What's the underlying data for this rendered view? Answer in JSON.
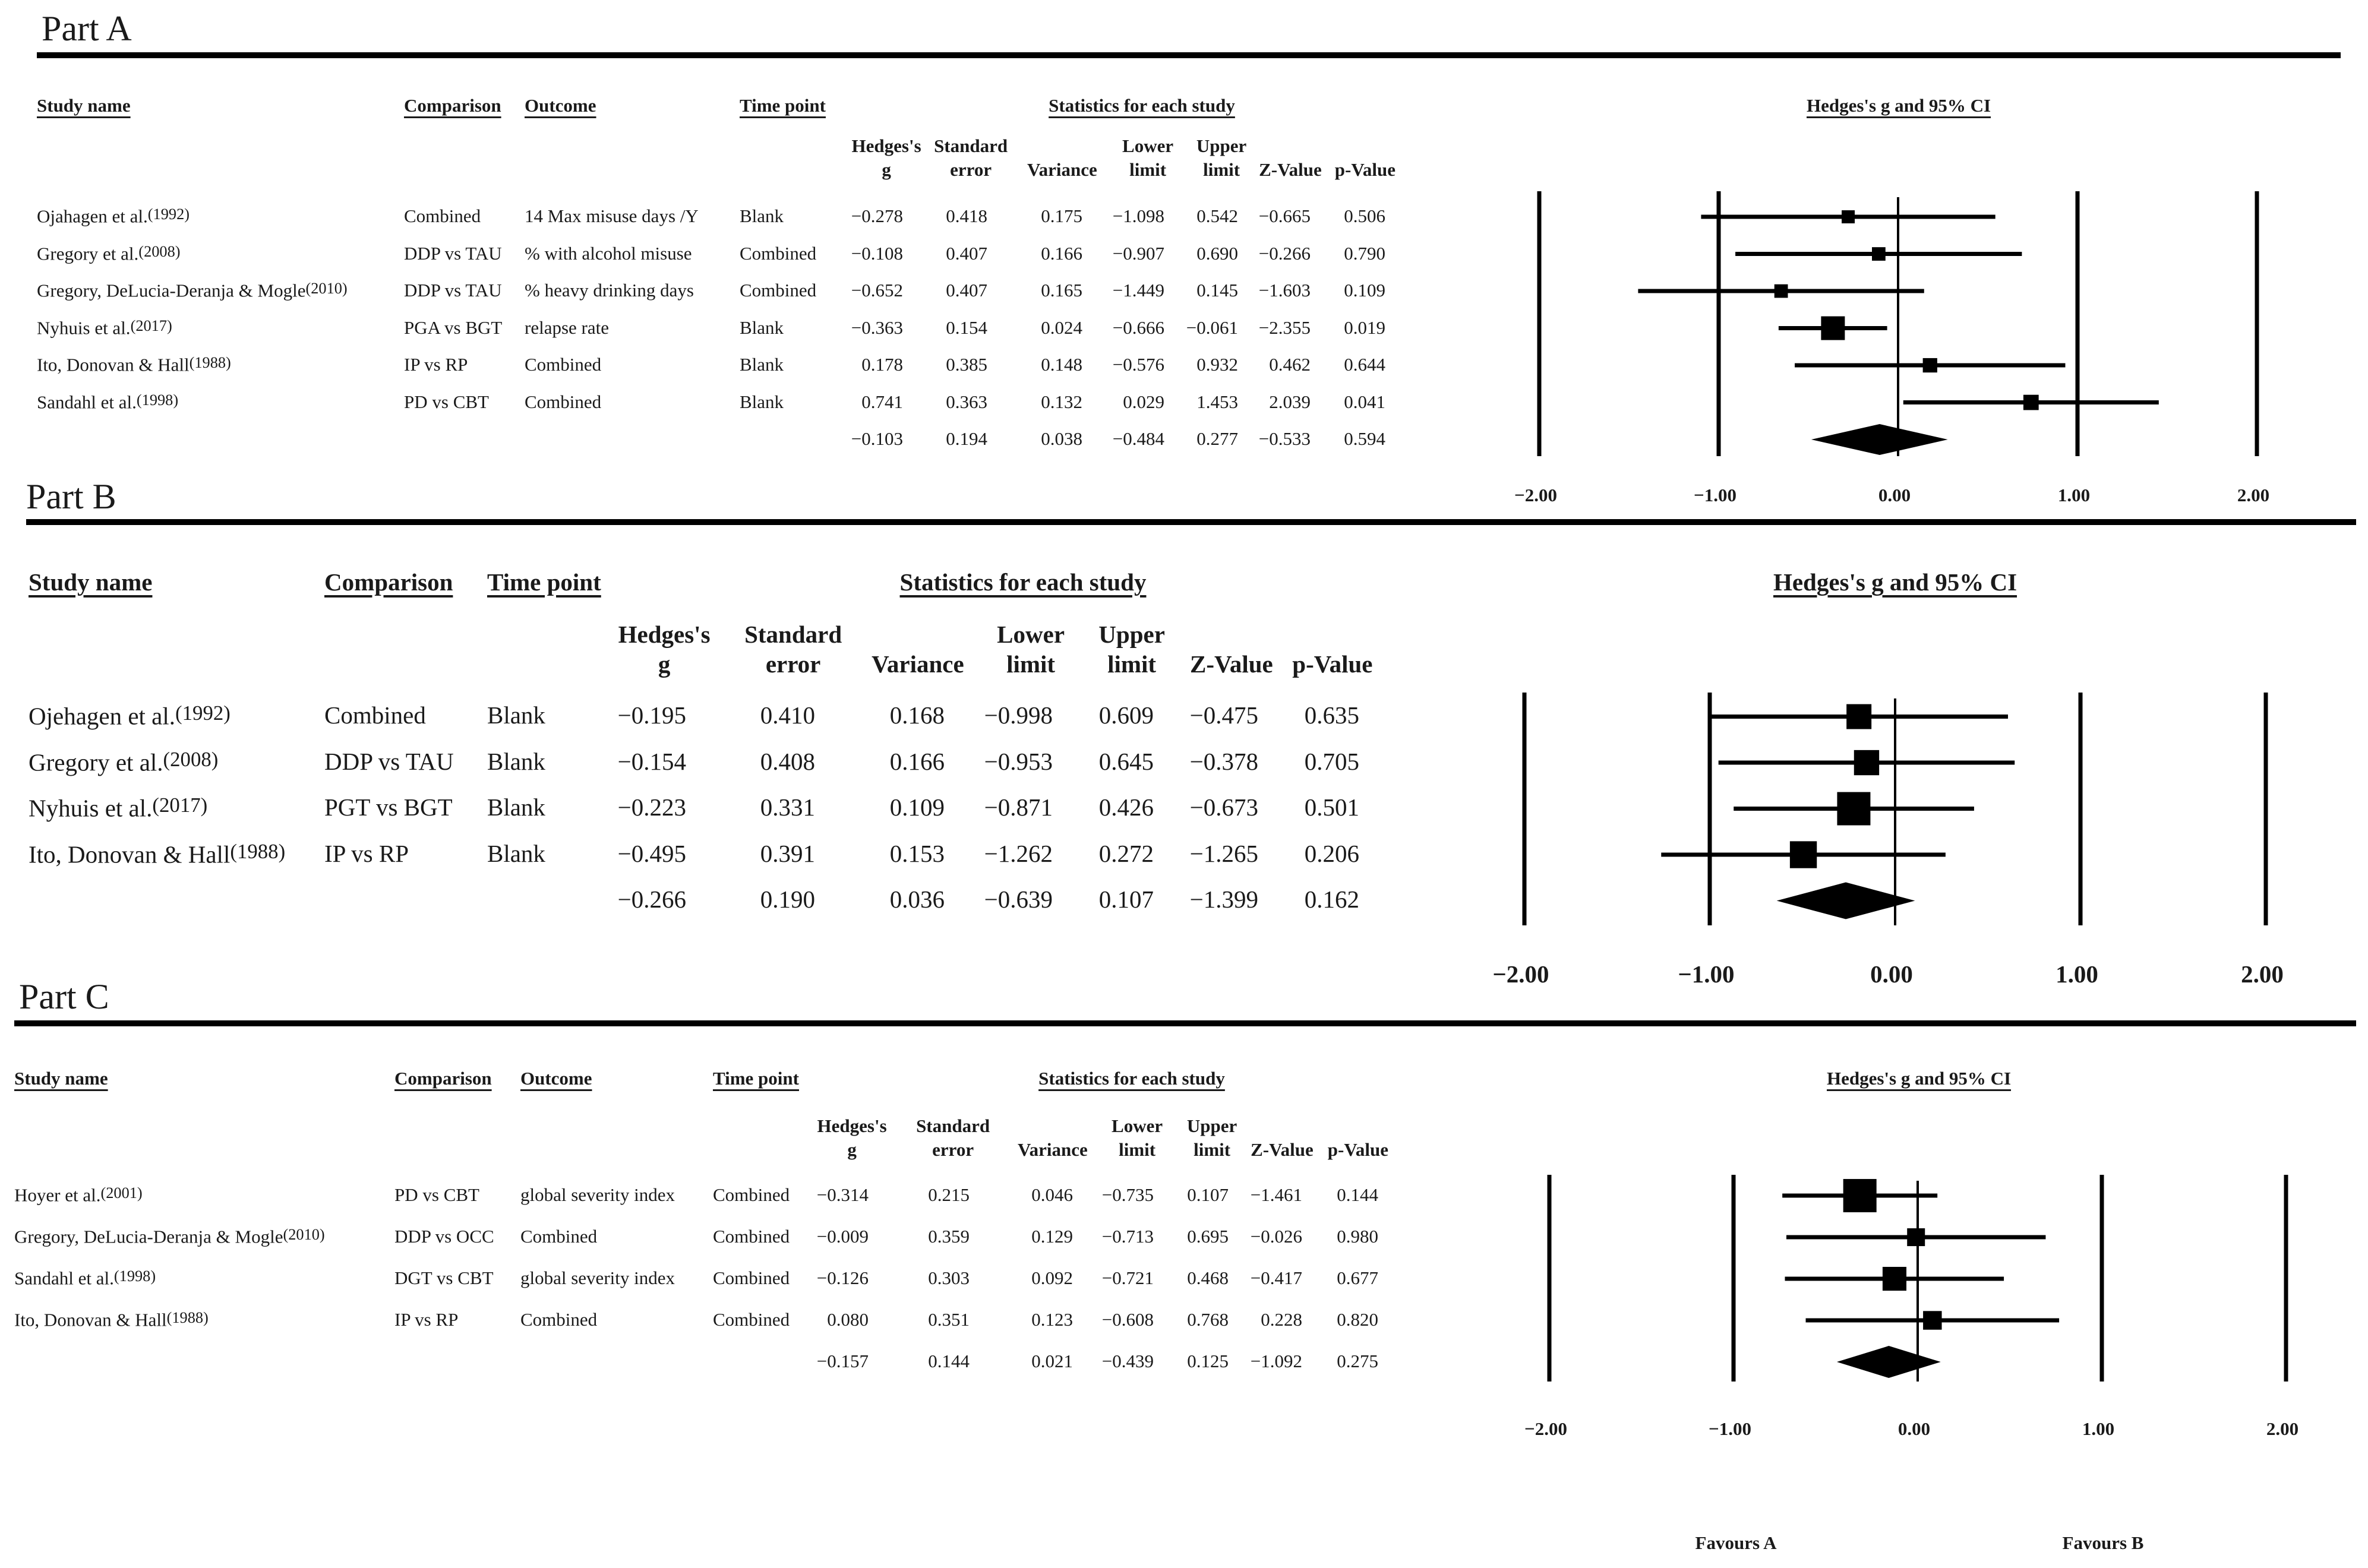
{
  "parts": [
    {
      "title": "Part A",
      "has_outcome": true,
      "columns": {
        "study": "Study name",
        "comparison": "Comparison",
        "outcome": "Outcome",
        "timepoint": "Time point",
        "stats_group": "Statistics for each study",
        "ci_group": "Hedges's g and 95% CI",
        "g": [
          "Hedges's",
          "g"
        ],
        "se": [
          "Standard",
          "error"
        ],
        "var": "Variance",
        "lower": [
          "Lower",
          "limit"
        ],
        "upper": [
          "Upper",
          "limit"
        ],
        "z": "Z-Value",
        "p": "p-Value"
      },
      "rows": [
        {
          "study": "Ojahagen et al.",
          "year": "(1992)",
          "comparison": "Combined",
          "outcome": "14 Max misuse days /Y",
          "timepoint": "Blank",
          "g": "−0.278",
          "se": "0.418",
          "var": "0.175",
          "lower": "−1.098",
          "upper": "0.542",
          "z": "−0.665",
          "p": "0.506"
        },
        {
          "study": "Gregory et al.",
          "year": "(2008)",
          "comparison": "DDP vs TAU",
          "outcome": "% with alcohol misuse",
          "timepoint": "Combined",
          "g": "−0.108",
          "se": "0.407",
          "var": "0.166",
          "lower": "−0.907",
          "upper": "0.690",
          "z": "−0.266",
          "p": "0.790"
        },
        {
          "study": "Gregory, DeLucia-Deranja & Mogle",
          "year": "(2010)",
          "comparison": "DDP vs TAU",
          "outcome": "% heavy drinking days",
          "timepoint": "Combined",
          "g": "−0.652",
          "se": "0.407",
          "var": "0.165",
          "lower": "−1.449",
          "upper": "0.145",
          "z": "−1.603",
          "p": "0.109"
        },
        {
          "study": "Nyhuis et al.",
          "year": "(2017)",
          "comparison": "PGA vs BGT",
          "outcome": "relapse rate",
          "timepoint": "Blank",
          "g": "−0.363",
          "se": "0.154",
          "var": "0.024",
          "lower": "−0.666",
          "upper": "−0.061",
          "z": "−2.355",
          "p": "0.019"
        },
        {
          "study": "Ito, Donovan & Hall",
          "year": "(1988)",
          "comparison": "IP vs RP",
          "outcome": "Combined",
          "timepoint": "Blank",
          "g": "0.178",
          "se": "0.385",
          "var": "0.148",
          "lower": "−0.576",
          "upper": "0.932",
          "z": "0.462",
          "p": "0.644"
        },
        {
          "study": "Sandahl et al.",
          "year": "(1998)",
          "comparison": "PD vs CBT",
          "outcome": "Combined",
          "timepoint": "Blank",
          "g": "0.741",
          "se": "0.363",
          "var": "0.132",
          "lower": "0.029",
          "upper": "1.453",
          "z": "2.039",
          "p": "0.041"
        }
      ],
      "summary": {
        "g": "−0.103",
        "se": "0.194",
        "var": "0.038",
        "lower": "−0.484",
        "upper": "0.277",
        "z": "−0.533",
        "p": "0.594"
      },
      "axis_ticks": [
        "−2.00",
        "−1.00",
        "0.00",
        "1.00",
        "2.00"
      ]
    },
    {
      "title": "Part B",
      "has_outcome": false,
      "columns": {
        "study": "Study name",
        "comparison": "Comparison",
        "timepoint": "Time point",
        "stats_group": "Statistics for each study",
        "ci_group": "Hedges's g and 95% CI",
        "g": [
          "Hedges's",
          "g"
        ],
        "se": [
          "Standard",
          "error"
        ],
        "var": "Variance",
        "lower": [
          "Lower",
          "limit"
        ],
        "upper": [
          "Upper",
          "limit"
        ],
        "z": "Z-Value",
        "p": "p-Value"
      },
      "rows": [
        {
          "study": "Ojehagen et al.",
          "year": "(1992)",
          "comparison": "Combined",
          "timepoint": "Blank",
          "g": "−0.195",
          "se": "0.410",
          "var": "0.168",
          "lower": "−0.998",
          "upper": "0.609",
          "z": "−0.475",
          "p": "0.635"
        },
        {
          "study": "Gregory et al.",
          "year": "(2008)",
          "comparison": "DDP vs TAU",
          "timepoint": "Blank",
          "g": "−0.154",
          "se": "0.408",
          "var": "0.166",
          "lower": "−0.953",
          "upper": "0.645",
          "z": "−0.378",
          "p": "0.705"
        },
        {
          "study": "Nyhuis et al.",
          "year": "(2017)",
          "comparison": "PGT vs BGT",
          "timepoint": "Blank",
          "g": "−0.223",
          "se": "0.331",
          "var": "0.109",
          "lower": "−0.871",
          "upper": "0.426",
          "z": "−0.673",
          "p": "0.501"
        },
        {
          "study": "Ito, Donovan & Hall",
          "year": "(1988)",
          "comparison": "IP vs RP",
          "timepoint": "Blank",
          "g": "−0.495",
          "se": "0.391",
          "var": "0.153",
          "lower": "−1.262",
          "upper": "0.272",
          "z": "−1.265",
          "p": "0.206"
        }
      ],
      "summary": {
        "g": "−0.266",
        "se": "0.190",
        "var": "0.036",
        "lower": "−0.639",
        "upper": "0.107",
        "z": "−1.399",
        "p": "0.162"
      },
      "axis_ticks": [
        "−2.00",
        "−1.00",
        "0.00",
        "1.00",
        "2.00"
      ]
    },
    {
      "title": "Part C",
      "has_outcome": true,
      "columns": {
        "study": "Study name",
        "comparison": "Comparison",
        "outcome": "Outcome",
        "timepoint": "Time point",
        "stats_group": "Statistics for each study",
        "ci_group": "Hedges's g and 95% CI",
        "g": [
          "Hedges's",
          "g"
        ],
        "se": [
          "Standard",
          "error"
        ],
        "var": "Variance",
        "lower": [
          "Lower",
          "limit"
        ],
        "upper": [
          "Upper",
          "limit"
        ],
        "z": "Z-Value",
        "p": "p-Value"
      },
      "rows": [
        {
          "study": "Hoyer et al.",
          "year": "(2001)",
          "comparison": "PD vs CBT",
          "outcome": "global severity index",
          "timepoint": "Combined",
          "g": "−0.314",
          "se": "0.215",
          "var": "0.046",
          "lower": "−0.735",
          "upper": "0.107",
          "z": "−1.461",
          "p": "0.144"
        },
        {
          "study": "Gregory, DeLucia-Deranja & Mogle",
          "year": "(2010)",
          "comparison": "DDP vs OCC",
          "outcome": "Combined",
          "timepoint": "Combined",
          "g": "−0.009",
          "se": "0.359",
          "var": "0.129",
          "lower": "−0.713",
          "upper": "0.695",
          "z": "−0.026",
          "p": "0.980"
        },
        {
          "study": "Sandahl et al.",
          "year": "(1998)",
          "comparison": "DGT vs CBT",
          "outcome": "global severity index",
          "timepoint": "Combined",
          "g": "−0.126",
          "se": "0.303",
          "var": "0.092",
          "lower": "−0.721",
          "upper": "0.468",
          "z": "−0.417",
          "p": "0.677"
        },
        {
          "study": "Ito, Donovan & Hall",
          "year": "(1988)",
          "comparison": "IP vs RP",
          "outcome": "Combined",
          "timepoint": "Combined",
          "g": "0.080",
          "se": "0.351",
          "var": "0.123",
          "lower": "−0.608",
          "upper": "0.768",
          "z": "0.228",
          "p": "0.820"
        }
      ],
      "summary": {
        "g": "−0.157",
        "se": "0.144",
        "var": "0.021",
        "lower": "−0.439",
        "upper": "0.125",
        "z": "−1.092",
        "p": "0.275"
      },
      "axis_ticks": [
        "−2.00",
        "−1.00",
        "0.00",
        "1.00",
        "2.00"
      ]
    }
  ],
  "favours": {
    "left": "Favours A",
    "right": "Favours B"
  },
  "chart_data": [
    {
      "type": "forest",
      "title": "Part A",
      "xlabel": "Hedges's g and 95% CI",
      "xlim": [
        -2,
        2
      ],
      "studies": [
        {
          "name": "Ojahagen et al. (1992)",
          "g": -0.278,
          "lower": -1.098,
          "upper": 0.542,
          "se": 0.418
        },
        {
          "name": "Gregory et al. (2008)",
          "g": -0.108,
          "lower": -0.907,
          "upper": 0.69,
          "se": 0.407
        },
        {
          "name": "Gregory, DeLucia-Deranja & Mogle (2010)",
          "g": -0.652,
          "lower": -1.449,
          "upper": 0.145,
          "se": 0.407
        },
        {
          "name": "Nyhuis et al. (2017)",
          "g": -0.363,
          "lower": -0.666,
          "upper": -0.061,
          "se": 0.154
        },
        {
          "name": "Ito, Donovan & Hall (1988)",
          "g": 0.178,
          "lower": -0.576,
          "upper": 0.932,
          "se": 0.385
        },
        {
          "name": "Sandahl et al. (1998)",
          "g": 0.741,
          "lower": 0.029,
          "upper": 1.453,
          "se": 0.363
        }
      ],
      "summary": {
        "g": -0.103,
        "lower": -0.484,
        "upper": 0.277
      }
    },
    {
      "type": "forest",
      "title": "Part B",
      "xlabel": "Hedges's g and 95% CI",
      "xlim": [
        -2,
        2
      ],
      "studies": [
        {
          "name": "Ojehagen et al. (1992)",
          "g": -0.195,
          "lower": -0.998,
          "upper": 0.609,
          "se": 0.41
        },
        {
          "name": "Gregory et al. (2008)",
          "g": -0.154,
          "lower": -0.953,
          "upper": 0.645,
          "se": 0.408
        },
        {
          "name": "Nyhuis et al. (2017)",
          "g": -0.223,
          "lower": -0.871,
          "upper": 0.426,
          "se": 0.331
        },
        {
          "name": "Ito, Donovan & Hall (1988)",
          "g": -0.495,
          "lower": -1.262,
          "upper": 0.272,
          "se": 0.391
        }
      ],
      "summary": {
        "g": -0.266,
        "lower": -0.639,
        "upper": 0.107
      }
    },
    {
      "type": "forest",
      "title": "Part C",
      "xlabel": "Hedges's g and 95% CI",
      "xlim": [
        -2,
        2
      ],
      "studies": [
        {
          "name": "Hoyer et al. (2001)",
          "g": -0.314,
          "lower": -0.735,
          "upper": 0.107,
          "se": 0.215
        },
        {
          "name": "Gregory, DeLucia-Deranja & Mogle (2010)",
          "g": -0.009,
          "lower": -0.713,
          "upper": 0.695,
          "se": 0.359
        },
        {
          "name": "Sandahl et al. (1998)",
          "g": -0.126,
          "lower": -0.721,
          "upper": 0.468,
          "se": 0.303
        },
        {
          "name": "Ito, Donovan & Hall (1988)",
          "g": 0.08,
          "lower": -0.608,
          "upper": 0.768,
          "se": 0.351
        }
      ],
      "summary": {
        "g": -0.157,
        "lower": -0.439,
        "upper": 0.125
      }
    }
  ]
}
